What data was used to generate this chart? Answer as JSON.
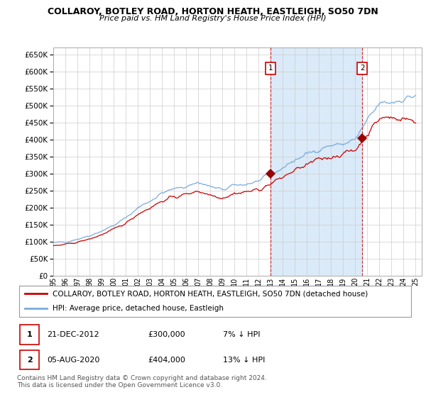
{
  "title": "COLLAROY, BOTLEY ROAD, HORTON HEATH, EASTLEIGH, SO50 7DN",
  "subtitle": "Price paid vs. HM Land Registry's House Price Index (HPI)",
  "ylim": [
    0,
    670000
  ],
  "yticks": [
    0,
    50000,
    100000,
    150000,
    200000,
    250000,
    300000,
    350000,
    400000,
    450000,
    500000,
    550000,
    600000,
    650000
  ],
  "xlim_start": 1995.0,
  "xlim_end": 2025.5,
  "hpi_color": "#7aabdc",
  "hpi_fill_color": "#daeaf8",
  "price_color": "#cc0000",
  "marker_color": "#990000",
  "vline_color": "#cc0000",
  "annotation_bg": "#ffffff",
  "annotation_border": "#cc0000",
  "grid_color": "#cccccc",
  "legend_label_red": "COLLAROY, BOTLEY ROAD, HORTON HEATH, EASTLEIGH, SO50 7DN (detached house)",
  "legend_label_blue": "HPI: Average price, detached house, Eastleigh",
  "transaction1_x": 2012.97,
  "transaction1_y": 300000,
  "transaction1_label": "1",
  "transaction2_x": 2020.58,
  "transaction2_y": 404000,
  "transaction2_label": "2",
  "table_rows": [
    {
      "label": "1",
      "date": "21-DEC-2012",
      "price": "£300,000",
      "note": "7% ↓ HPI"
    },
    {
      "label": "2",
      "date": "05-AUG-2020",
      "price": "£404,000",
      "note": "13% ↓ HPI"
    }
  ],
  "footer": "Contains HM Land Registry data © Crown copyright and database right 2024.\nThis data is licensed under the Open Government Licence v3.0.",
  "hpi_annual_years": [
    1995,
    1996,
    1997,
    1998,
    1999,
    2000,
    2001,
    2002,
    2003,
    2004,
    2005,
    2006,
    2007,
    2008,
    2009,
    2010,
    2011,
    2012,
    2013,
    2014,
    2015,
    2016,
    2017,
    2018,
    2019,
    2020,
    2021,
    2022,
    2023,
    2024,
    2025
  ],
  "hpi_annual_values": [
    97000,
    100000,
    108000,
    118000,
    132000,
    148000,
    170000,
    200000,
    220000,
    243000,
    255000,
    263000,
    275000,
    262000,
    252000,
    265000,
    270000,
    278000,
    295000,
    318000,
    340000,
    357000,
    373000,
    383000,
    387000,
    400000,
    455000,
    505000,
    510000,
    520000,
    530000
  ],
  "price_annual_years": [
    1995,
    1996,
    1997,
    1998,
    1999,
    2000,
    2001,
    2002,
    2003,
    2004,
    2005,
    2006,
    2007,
    2008,
    2009,
    2010,
    2011,
    2012,
    2013,
    2014,
    2015,
    2016,
    2017,
    2018,
    2019,
    2020,
    2021,
    2022,
    2023,
    2024,
    2025
  ],
  "price_annual_values": [
    88000,
    92000,
    99000,
    108000,
    121000,
    136000,
    155000,
    182000,
    200000,
    220000,
    232000,
    239000,
    250000,
    238000,
    230000,
    242000,
    247000,
    253000,
    270000,
    290000,
    310000,
    325000,
    342000,
    350000,
    358000,
    370000,
    418000,
    462000,
    465000,
    462000,
    452000
  ]
}
